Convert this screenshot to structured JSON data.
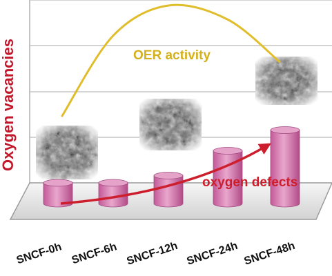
{
  "chart_data": {
    "type": "bar",
    "ylabel": "Oxygen vacancies",
    "categories": [
      "SNCF-0h",
      "SNCF-6h",
      "SNCF-12h",
      "SNCF-24h",
      "SNCF-48h"
    ],
    "series": [
      {
        "values": [
          1.0,
          1.0,
          1.35,
          2.55,
          3.55
        ]
      }
    ],
    "curve": {
      "label": "OER activity",
      "values": [
        0.45,
        0.85,
        1.0,
        0.93,
        0.72
      ],
      "color": "#e0bd2a"
    },
    "trend_arrow": {
      "label": "oxygen defects",
      "color": "#cc1e2c"
    },
    "micrographs": [
      {
        "category": "SNCF-0h",
        "name": "sem-image-0h"
      },
      {
        "category": "SNCF-12h",
        "name": "sem-image-12h"
      },
      {
        "category": "SNCF-48h",
        "name": "sem-image-48h"
      }
    ],
    "grid": true,
    "bar_color": "#cf6fa8"
  }
}
